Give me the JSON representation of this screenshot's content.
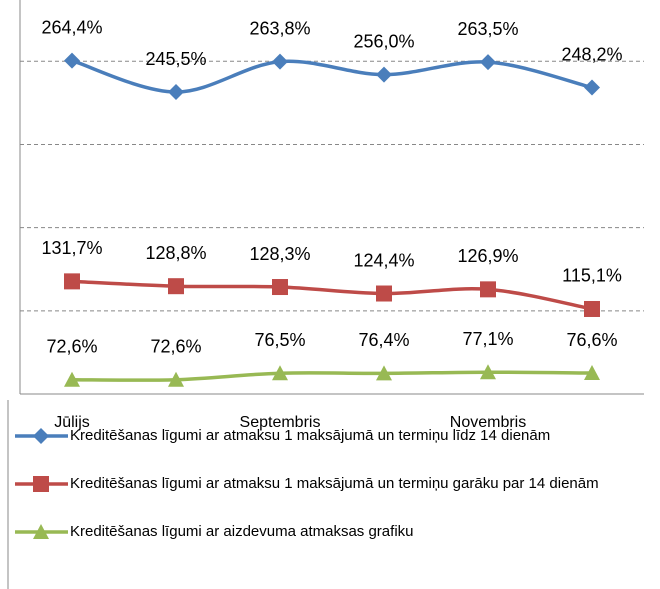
{
  "chart_data": {
    "type": "line",
    "categories": [
      "Jūlijs",
      null,
      "Septembris",
      null,
      "Novembris",
      null
    ],
    "series": [
      {
        "name": "Kreditēšanas līgumi ar atmaksu 1 maksājumā un termiņu līdz 14 dienām",
        "color": "#4a7ebb",
        "marker": "diamond",
        "values": [
          264.4,
          245.5,
          263.8,
          256.0,
          263.5,
          248.2
        ],
        "value_labels": [
          "264,4%",
          "245,5%",
          "263,8%",
          "256,0%",
          "263,5%",
          "248,2%"
        ]
      },
      {
        "name": "Kreditēšanas līgumi ar atmaksu 1 maksājumā un termiņu garāku par 14 dienām",
        "color": "#be4b48",
        "marker": "square",
        "values": [
          131.7,
          128.8,
          128.3,
          124.4,
          126.9,
          115.1
        ],
        "value_labels": [
          "131,7%",
          "128,8%",
          "128,3%",
          "124,4%",
          "126,9%",
          "115,1%"
        ]
      },
      {
        "name": "Kreditēšanas līgumi ar aizdevuma atmaksas grafiku",
        "color": "#98b954",
        "marker": "triangle",
        "values": [
          72.6,
          72.6,
          76.5,
          76.4,
          77.1,
          76.6
        ],
        "value_labels": [
          "72,6%",
          "72,6%",
          "76,5%",
          "76,4%",
          "77,1%",
          "76,6%"
        ]
      }
    ],
    "ylim": [
      64,
      290
    ],
    "yticks": [
      64,
      114,
      164,
      214,
      264
    ],
    "grid": true
  }
}
